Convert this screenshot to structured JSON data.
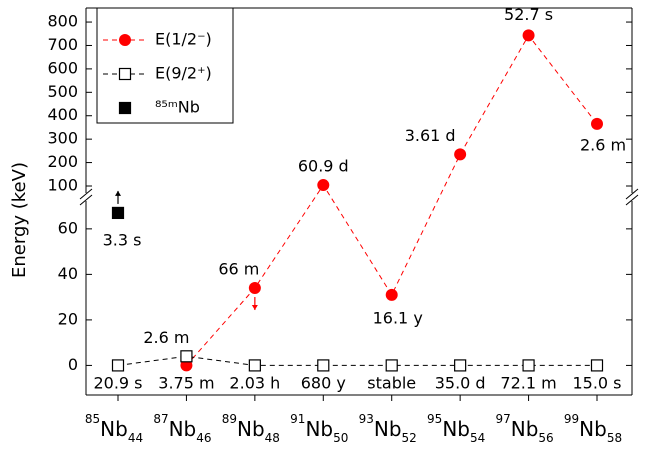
{
  "chart_data": {
    "type": "line",
    "ylabel": "Energy (keV)",
    "categories": [
      {
        "mass": 85,
        "element": "Nb",
        "neutrons": 44
      },
      {
        "mass": 87,
        "element": "Nb",
        "neutrons": 46
      },
      {
        "mass": 89,
        "element": "Nb",
        "neutrons": 48
      },
      {
        "mass": 91,
        "element": "Nb",
        "neutrons": 50
      },
      {
        "mass": 93,
        "element": "Nb",
        "neutrons": 52
      },
      {
        "mass": 95,
        "element": "Nb",
        "neutrons": 54
      },
      {
        "mass": 97,
        "element": "Nb",
        "neutrons": 56
      },
      {
        "mass": 99,
        "element": "Nb",
        "neutrons": 58
      }
    ],
    "ground_state_half_lives": [
      "20.9 s",
      "3.75 m",
      "2.03 h",
      "680 y",
      "stable",
      "35.0 d",
      "72.1 m",
      "15.0 s"
    ],
    "axis_break": true,
    "segments": [
      {
        "ylim": [
          -13,
          74
        ],
        "yticks": [
          0,
          20,
          40,
          60
        ]
      },
      {
        "ylim": [
          53,
          860
        ],
        "yticks": [
          100,
          200,
          300,
          400,
          500,
          600,
          700,
          800
        ]
      }
    ],
    "legend": "upper left",
    "series": [
      {
        "name": "E(1/2⁻)",
        "color": "#ff0000",
        "marker": "filled-circle",
        "line": "dashed",
        "values": [
          null,
          0,
          34,
          104,
          31,
          235,
          743,
          365
        ],
        "half_lives": [
          null,
          null,
          "66 m",
          "60.9 d",
          "16.1 y",
          "3.61 d",
          "52.7 s",
          "2.6 m"
        ],
        "limits": [
          null,
          null,
          "upper",
          null,
          null,
          null,
          null,
          null
        ]
      },
      {
        "name": "E(9/2⁺)",
        "color": "#000000",
        "marker": "open-square",
        "line": "dashed",
        "values": [
          0,
          4,
          0,
          0,
          0,
          0,
          0,
          0
        ],
        "half_lives": [
          null,
          "2.6 m",
          null,
          null,
          null,
          null,
          null,
          null
        ],
        "limits": [
          null,
          null,
          null,
          null,
          null,
          null,
          null,
          null
        ]
      },
      {
        "name": "⁸⁵ᵐNb",
        "color": "#000000",
        "marker": "filled-square",
        "line": "none",
        "values": [
          67,
          null,
          null,
          null,
          null,
          null,
          null,
          null
        ],
        "half_lives": [
          "3.3 s",
          null,
          null,
          null,
          null,
          null,
          null,
          null
        ],
        "limits": [
          "lower",
          null,
          null,
          null,
          null,
          null,
          null,
          null
        ]
      }
    ]
  }
}
